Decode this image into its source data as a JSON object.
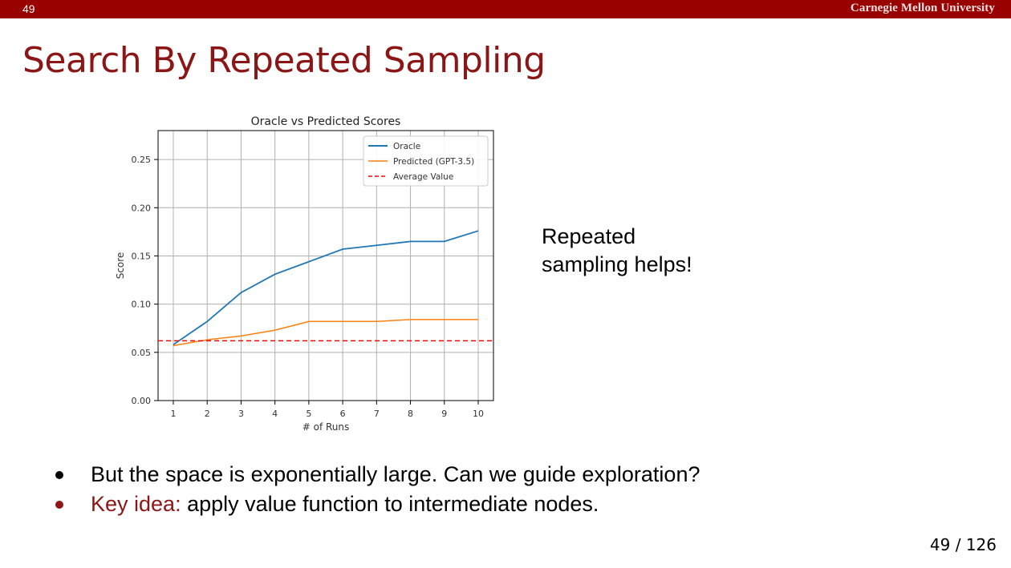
{
  "header": {
    "slide_number": "49",
    "logo_text": "Carnegie Mellon University",
    "bar_color": "#990000"
  },
  "slide": {
    "title": "Search By Repeated Sampling",
    "side_note_line1": "Repeated",
    "side_note_line2": "sampling helps!",
    "bullets": [
      {
        "term": "",
        "text": "But the space is exponentially large. Can we guide exploration?"
      },
      {
        "term": "Key idea:",
        "text": " apply value function to intermediate nodes."
      }
    ],
    "page_counter": "49 / 126",
    "accent_color": "#8c1515"
  },
  "chart_data": {
    "type": "line",
    "title": "Oracle vs Predicted Scores",
    "xlabel": "# of Runs",
    "ylabel": "Score",
    "x": [
      1,
      2,
      3,
      4,
      5,
      6,
      7,
      8,
      9,
      10
    ],
    "xlim": [
      0.55,
      10.45
    ],
    "ylim": [
      0,
      0.28
    ],
    "yticks": [
      0.0,
      0.05,
      0.1,
      0.15,
      0.2,
      0.25
    ],
    "ytick_labels": [
      "0.00",
      "0.05",
      "0.10",
      "0.15",
      "0.20",
      "0.25"
    ],
    "xtick_labels": [
      "1",
      "2",
      "3",
      "4",
      "5",
      "6",
      "7",
      "8",
      "9",
      "10"
    ],
    "grid": true,
    "legend_position": "top-right",
    "series": [
      {
        "name": "Oracle",
        "color": "#1f77b4",
        "style": "solid",
        "values": [
          0.058,
          0.082,
          0.112,
          0.131,
          0.144,
          0.157,
          0.161,
          0.165,
          0.165,
          0.176
        ]
      },
      {
        "name": "Predicted (GPT-3.5)",
        "color": "#ff7f0e",
        "style": "solid",
        "values": [
          0.057,
          0.063,
          0.067,
          0.073,
          0.082,
          0.082,
          0.082,
          0.084,
          0.084,
          0.084
        ]
      },
      {
        "name": "Average Value",
        "color": "#ff0000",
        "style": "dashed",
        "values": [
          0.062,
          0.062,
          0.062,
          0.062,
          0.062,
          0.062,
          0.062,
          0.062,
          0.062,
          0.062
        ]
      }
    ]
  }
}
